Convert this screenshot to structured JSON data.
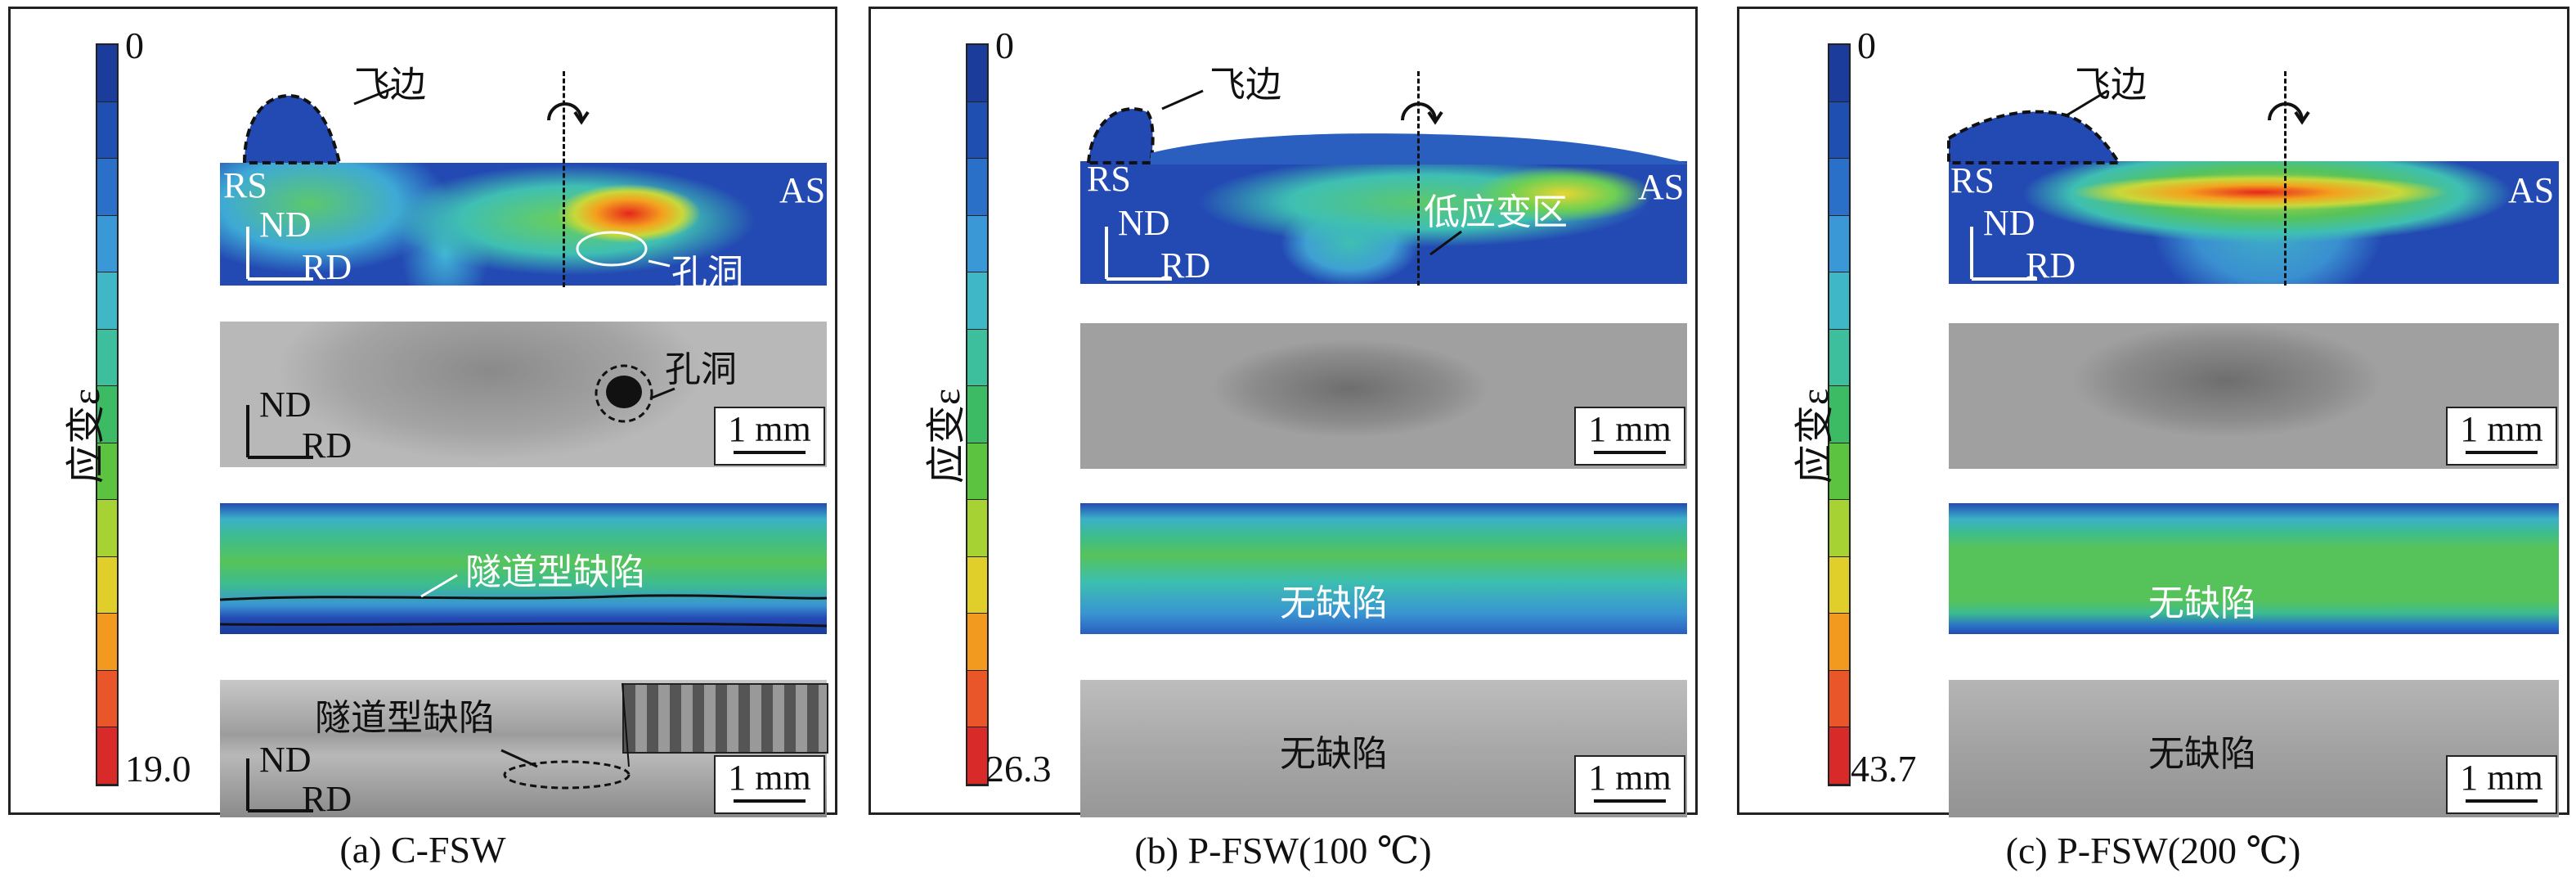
{
  "colorbar": {
    "title": "应变ε",
    "colors": [
      "#1c3c9c",
      "#1f4fb0",
      "#2a6fc8",
      "#3a98d6",
      "#3fb7c6",
      "#3dbf9e",
      "#3cba64",
      "#5cc340",
      "#a7d234",
      "#e0cf2a",
      "#f19a1f",
      "#e8562a",
      "#d92a2a"
    ]
  },
  "panels": [
    {
      "caption": "(a) C-FSW",
      "colorbar_min": "0",
      "colorbar_max": "19.0",
      "labels": {
        "flash": "飞边",
        "rs": "RS",
        "as": "AS",
        "nd": "ND",
        "rd": "RD",
        "void": "孔洞",
        "void_micro": "孔洞",
        "scale": "1 mm",
        "tunnel_sim": "隧道型缺陷",
        "tunnel_micro": "隧道型缺陷"
      }
    },
    {
      "caption": "(b) P-FSW(100 ℃)",
      "colorbar_min": "0",
      "colorbar_max": "26.3",
      "labels": {
        "flash": "飞边",
        "rs": "RS",
        "as": "AS",
        "nd": "ND",
        "rd": "RD",
        "low_strain": "低应变区",
        "scale": "1 mm",
        "no_defect_sim": "无缺陷",
        "no_defect_micro": "无缺陷"
      }
    },
    {
      "caption": "(c) P-FSW(200 ℃)",
      "colorbar_min": "0",
      "colorbar_max": "43.7",
      "labels": {
        "flash": "飞边",
        "rs": "RS",
        "as": "AS",
        "nd": "ND",
        "rd": "RD",
        "scale": "1 mm",
        "no_defect_sim": "无缺陷",
        "no_defect_micro": "无缺陷"
      }
    }
  ]
}
